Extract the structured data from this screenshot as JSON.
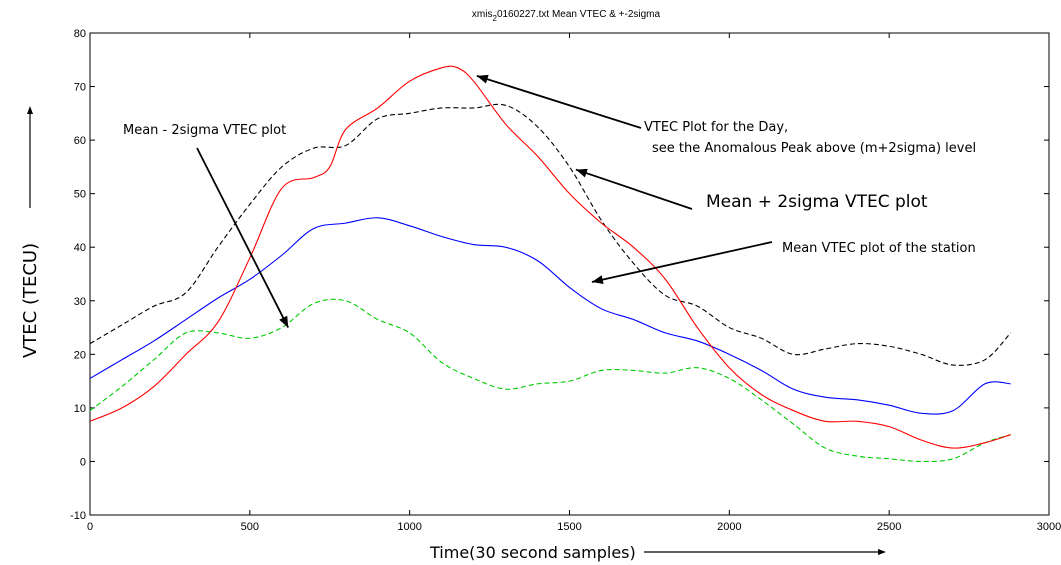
{
  "chart_data": {
    "type": "line",
    "title": "xmis20160227.txt Mean VTEC & +-2sigma",
    "title_parts": {
      "prefix": "xmis",
      "subscript": "2",
      "suffix": "0160227.txt Mean VTEC & +-2sigma"
    },
    "xlabel": "Time(30 second samples)",
    "ylabel": "VTEC (TECU)",
    "xlim": [
      0,
      3000
    ],
    "ylim": [
      -10,
      80
    ],
    "xticks": [
      0,
      500,
      1000,
      1500,
      2000,
      2500,
      3000
    ],
    "yticks": [
      -10,
      0,
      10,
      20,
      30,
      40,
      50,
      60,
      70,
      80
    ],
    "grid": false,
    "series": [
      {
        "name": "Mean VTEC",
        "color": "#0000ff",
        "style": "solid",
        "x": [
          0,
          100,
          200,
          300,
          400,
          500,
          600,
          700,
          800,
          900,
          1000,
          1100,
          1200,
          1300,
          1400,
          1500,
          1600,
          1700,
          1800,
          1900,
          2000,
          2100,
          2200,
          2300,
          2400,
          2500,
          2600,
          2700,
          2800,
          2880
        ],
        "y": [
          15.5,
          19,
          22.5,
          26.5,
          30.5,
          34,
          38.5,
          43.5,
          44.5,
          45.5,
          44,
          42,
          40.5,
          40,
          37.5,
          32.5,
          28.5,
          26.5,
          24,
          22.5,
          20,
          17,
          13.5,
          12,
          11.5,
          10.5,
          9,
          9.5,
          14.5,
          14.5
        ]
      },
      {
        "name": "Mean + 2sigma",
        "color": "#000000",
        "style": "dashed",
        "x": [
          0,
          100,
          200,
          300,
          400,
          500,
          600,
          700,
          800,
          900,
          1000,
          1100,
          1200,
          1300,
          1400,
          1500,
          1600,
          1700,
          1800,
          1900,
          2000,
          2100,
          2200,
          2300,
          2400,
          2500,
          2600,
          2700,
          2800,
          2880
        ],
        "y": [
          22,
          25.5,
          29,
          31.5,
          40,
          48,
          55,
          58.5,
          59,
          64,
          65,
          66,
          66,
          66.5,
          62.5,
          55,
          45,
          37,
          31,
          29,
          25,
          23,
          20,
          21,
          22,
          21.5,
          20,
          18,
          19,
          24
        ]
      },
      {
        "name": "Mean - 2sigma",
        "color": "#00cc00",
        "style": "dashed",
        "x": [
          0,
          100,
          200,
          300,
          400,
          500,
          600,
          700,
          800,
          900,
          1000,
          1100,
          1200,
          1300,
          1400,
          1500,
          1600,
          1700,
          1800,
          1900,
          2000,
          2100,
          2200,
          2300,
          2400,
          2500,
          2600,
          2700,
          2800,
          2880
        ],
        "y": [
          9.5,
          14,
          19,
          24,
          24,
          23,
          25,
          29.5,
          30,
          26.5,
          24,
          18.5,
          15.5,
          13.5,
          14.5,
          15,
          17,
          17,
          16.5,
          17.5,
          15.5,
          11.5,
          7,
          2.5,
          1,
          0.5,
          0,
          0.5,
          3.5,
          5
        ]
      },
      {
        "name": "VTEC of the day",
        "color": "#ff0000",
        "style": "solid",
        "x": [
          0,
          100,
          200,
          300,
          400,
          500,
          600,
          700,
          750,
          800,
          900,
          1000,
          1100,
          1150,
          1200,
          1300,
          1400,
          1500,
          1600,
          1700,
          1800,
          1900,
          2000,
          2100,
          2200,
          2300,
          2400,
          2500,
          2600,
          2700,
          2800,
          2880
        ],
        "y": [
          7.5,
          10,
          14,
          20,
          26,
          38,
          51,
          53,
          55,
          62,
          66,
          71,
          73.5,
          73.5,
          71,
          63,
          57,
          50,
          44.5,
          40,
          34,
          25,
          17.5,
          12.5,
          9.5,
          7.5,
          7.5,
          6.5,
          4,
          2.5,
          3.5,
          5
        ]
      }
    ],
    "annotations": [
      {
        "id": "sigma_minus",
        "text": "Mean - 2sigma VTEC plot",
        "arrow_to": [
          620,
          25
        ]
      },
      {
        "id": "peak_line1",
        "text": "VTEC Plot for the Day,",
        "arrow_to": [
          1210,
          72
        ]
      },
      {
        "id": "peak_line2",
        "text": "see the Anomalous Peak above (m+2sigma) level"
      },
      {
        "id": "sigma_plus",
        "text": "Mean + 2sigma VTEC plot",
        "arrow_to": [
          1520,
          54.5
        ]
      },
      {
        "id": "mean_station",
        "text": "Mean VTEC plot of the station",
        "arrow_to": [
          1570,
          33.5
        ]
      }
    ]
  }
}
